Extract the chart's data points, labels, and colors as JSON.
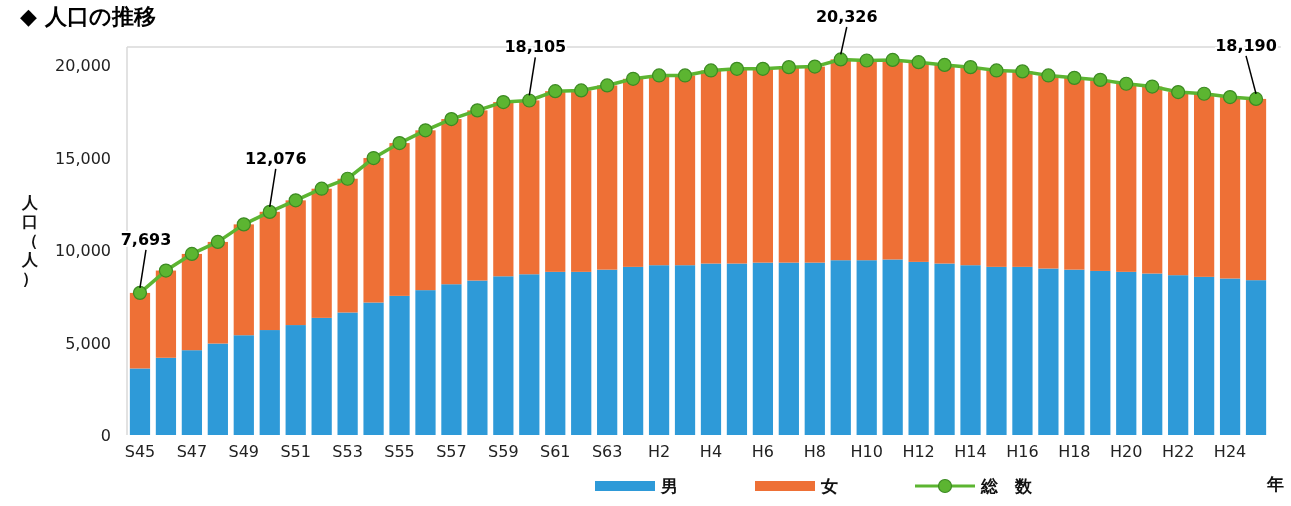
{
  "chart_data": {
    "type": "bar",
    "stacked": true,
    "title": "◆ 人口の推移",
    "ylabel": "人口（人）",
    "xlabel": "年",
    "categories": [
      "S45",
      null,
      "S47",
      null,
      "S49",
      null,
      "S51",
      null,
      "S53",
      null,
      "S55",
      null,
      "S57",
      null,
      "S59",
      null,
      "S61",
      null,
      "S63",
      null,
      "H2",
      null,
      "H4",
      null,
      "H6",
      null,
      "H8",
      null,
      "H10",
      null,
      "H12",
      null,
      "H14",
      null,
      "H16",
      null,
      "H18",
      null,
      "H20",
      null,
      "H22",
      null,
      "H24",
      null
    ],
    "ylim": [
      0,
      21000
    ],
    "yticks": [
      0,
      {
        "value": 5000,
        "label": "5,000"
      },
      {
        "value": 10000,
        "label": "10,000"
      },
      {
        "value": 15000,
        "label": "15,000"
      },
      {
        "value": 20000,
        "label": "20,000"
      }
    ],
    "legend": "bottom",
    "series": [
      {
        "name": "男",
        "color": "#2e9ad8",
        "values": [
          3600,
          4180,
          4590,
          4950,
          5400,
          5680,
          5950,
          6340,
          6630,
          7170,
          7530,
          7840,
          8160,
          8360,
          8590,
          8700,
          8830,
          8830,
          8950,
          9100,
          9190,
          9190,
          9280,
          9280,
          9330,
          9330,
          9330,
          9460,
          9460,
          9500,
          9370,
          9280,
          9190,
          9100,
          9100,
          9010,
          8950,
          8880,
          8830,
          8740,
          8650,
          8560,
          8470,
          8380
        ]
      },
      {
        "name": "女",
        "color": "#ee7036",
        "values": [
          4090,
          4720,
          5210,
          5500,
          6000,
          6400,
          6750,
          6990,
          7240,
          7820,
          8270,
          8650,
          8940,
          9210,
          9430,
          9410,
          9780,
          9820,
          9970,
          10180,
          10270,
          10270,
          10450,
          10540,
          10490,
          10580,
          10610,
          10870,
          10810,
          10800,
          10810,
          10750,
          10720,
          10630,
          10580,
          10450,
          10380,
          10340,
          10180,
          10120,
          9910,
          9910,
          9820,
          9810
        ]
      },
      {
        "name": "総　数",
        "type": "line",
        "color": "#5cb531",
        "marker": "circle",
        "values": [
          7693,
          8900,
          9800,
          10450,
          11400,
          12076,
          12700,
          13330,
          13870,
          14990,
          15800,
          16490,
          17100,
          17570,
          18020,
          18105,
          18610,
          18650,
          18920,
          19280,
          19460,
          19460,
          19730,
          19820,
          19820,
          19910,
          19940,
          20326,
          20270,
          20300,
          20180,
          20030,
          19910,
          19730,
          19680,
          19460,
          19330,
          19220,
          19010,
          18860,
          18560,
          18470,
          18290,
          18190
        ],
        "value_labels": [
          "7,693",
          null,
          null,
          null,
          null,
          "12,076",
          null,
          null,
          null,
          null,
          null,
          null,
          null,
          null,
          null,
          "18,105",
          null,
          null,
          null,
          null,
          null,
          null,
          null,
          null,
          null,
          null,
          null,
          "20,326",
          null,
          null,
          null,
          null,
          null,
          null,
          null,
          null,
          null,
          null,
          null,
          null,
          null,
          null,
          null,
          "18,190"
        ]
      }
    ]
  }
}
